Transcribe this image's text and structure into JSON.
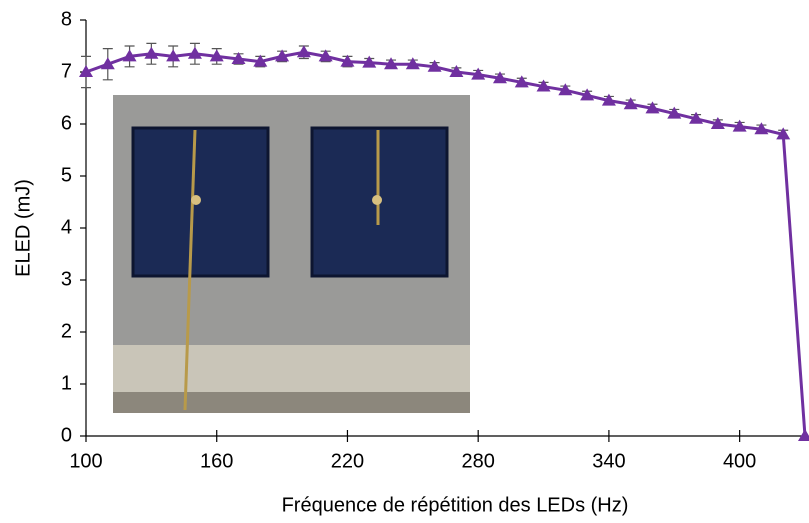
{
  "chart_data": {
    "type": "line",
    "x_label": "Fréquence de répétition des LEDs (Hz)",
    "y_label": "ELED (mJ)",
    "x": [
      100,
      110,
      120,
      130,
      140,
      150,
      160,
      170,
      180,
      190,
      200,
      210,
      220,
      230,
      240,
      250,
      260,
      270,
      280,
      290,
      300,
      310,
      320,
      330,
      340,
      350,
      360,
      370,
      380,
      390,
      400,
      410,
      420,
      430
    ],
    "series": [
      {
        "name": "ELED",
        "color": "#7030a0",
        "values": [
          7.0,
          7.15,
          7.3,
          7.35,
          7.3,
          7.35,
          7.3,
          7.25,
          7.2,
          7.3,
          7.38,
          7.3,
          7.2,
          7.18,
          7.15,
          7.15,
          7.1,
          7.0,
          6.95,
          6.88,
          6.8,
          6.72,
          6.65,
          6.55,
          6.45,
          6.38,
          6.3,
          6.2,
          6.1,
          6.0,
          5.95,
          5.9,
          5.8,
          0
        ],
        "errors": [
          0.3,
          0.3,
          0.2,
          0.2,
          0.2,
          0.2,
          0.15,
          0.1,
          0.1,
          0.1,
          0.12,
          0.1,
          0.1,
          0.08,
          0.08,
          0.08,
          0.08,
          0.08,
          0.08,
          0.08,
          0.08,
          0.08,
          0.08,
          0.08,
          0.08,
          0.08,
          0.08,
          0.08,
          0.08,
          0.08,
          0.08,
          0.08,
          0.08,
          0
        ]
      }
    ],
    "xlim": [
      100,
      430
    ],
    "ylim": [
      0,
      8
    ],
    "xticks": [
      100,
      160,
      220,
      280,
      340,
      400
    ],
    "yticks": [
      0,
      1,
      2,
      3,
      4,
      5,
      6,
      7,
      8
    ]
  }
}
